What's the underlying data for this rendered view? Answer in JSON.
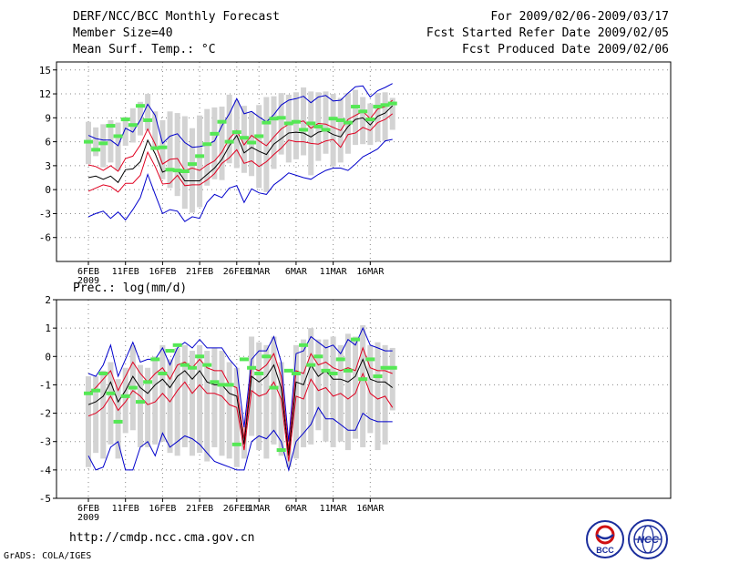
{
  "header": {
    "title": "DERF/NCC/BCC Monthly Forecast",
    "member_size": "Member Size=40",
    "variable": "Mean Surf. Temp.: °C",
    "for_range": "For 2009/02/06-2009/03/17",
    "fcst_started": "Fcst Started Refer Date 2009/02/05",
    "fcst_produced": "Fcst Produced Date 2009/02/06"
  },
  "footer": {
    "url": "http://cmdp.ncc.cma.gov.cn",
    "credit": "GrADS: COLA/IGES",
    "logo_left_text": "BCC",
    "logo_right_text": "NCC"
  },
  "colors": {
    "ensemble_box": "#d3d3d3",
    "median": "#55e855",
    "mean": "#000000",
    "inner_band": "#e00020",
    "outer_band": "#0000cc",
    "grid": "#888888"
  },
  "chart_data": [
    {
      "type": "line",
      "title": "Mean Surf. Temp.: °C",
      "xlabel": "",
      "ylabel": "",
      "ylim": [
        -9,
        16
      ],
      "yticks": [
        15,
        12,
        9,
        6,
        3,
        0,
        -3,
        -6
      ],
      "xtick_labels": [
        {
          "day": 0,
          "label": "6FEB",
          "sub": "2009"
        },
        {
          "day": 5,
          "label": "11FEB"
        },
        {
          "day": 10,
          "label": "16FEB"
        },
        {
          "day": 15,
          "label": "21FEB"
        },
        {
          "day": 20,
          "label": "26FEB"
        },
        {
          "day": 23,
          "label": "1MAR"
        },
        {
          "day": 28,
          "label": "6MAR"
        },
        {
          "day": 33,
          "label": "11MAR"
        },
        {
          "day": 38,
          "label": "16MAR"
        }
      ],
      "series": [
        {
          "name": "max",
          "values": [
            -3.4,
            -3,
            -2.7,
            -3.6,
            -2.8,
            -3.8,
            -2.5,
            -1,
            1.9,
            -0.6,
            -3,
            -2.5,
            -2.7,
            -4,
            -3.4,
            -3.6,
            -1.6,
            -0.6,
            -1,
            0.2,
            0.5,
            -1.6,
            0.1,
            -0.4,
            -0.6,
            0.6,
            1.3,
            2.1,
            1.8,
            1.5,
            1.3,
            1.9,
            2.4,
            2.7,
            2.7,
            2.4,
            3.2,
            4.1,
            4.6,
            5.1,
            6.1,
            6.3
          ]
        },
        {
          "name": "upper_inner",
          "values": [
            -0.2,
            0.2,
            0.6,
            0.4,
            -0.3,
            0.8,
            0.8,
            1.8,
            4.7,
            2.9,
            0.7,
            0.8,
            1.8,
            0.5,
            0.6,
            0.6,
            1.2,
            2,
            3.3,
            4,
            5,
            3.3,
            3.6,
            2.9,
            3.5,
            4.4,
            5.2,
            6.2,
            6,
            6,
            5.8,
            5.7,
            6.1,
            6.3,
            5.3,
            6.9,
            7.1,
            7.8,
            7.4,
            8.4,
            8.8,
            9.5
          ]
        },
        {
          "name": "mean",
          "values": [
            1.5,
            1.7,
            1.3,
            1.7,
            0.9,
            2.5,
            2.6,
            3.5,
            6.2,
            4.5,
            2.2,
            2.6,
            2.5,
            1.1,
            1.1,
            1.1,
            1.9,
            2.7,
            3.8,
            5.5,
            6.8,
            4.6,
            5.3,
            4.8,
            4.4,
            5.7,
            6.4,
            7.1,
            7.2,
            7.1,
            6.6,
            7.2,
            7.4,
            6.9,
            6.6,
            7.9,
            8.8,
            9,
            8.1,
            9.2,
            9.6,
            10.5
          ]
        },
        {
          "name": "lower_inner",
          "values": [
            3.1,
            2.9,
            2.4,
            3,
            2.3,
            3.9,
            4.2,
            5.6,
            7.6,
            5.7,
            3.2,
            3.8,
            3.9,
            2.4,
            2.7,
            2.4,
            3.1,
            3.6,
            4.7,
            6.4,
            7.4,
            5.6,
            6.8,
            6.1,
            5.5,
            6.6,
            7.6,
            8.2,
            8.4,
            8.6,
            7.7,
            8.3,
            8.2,
            7.8,
            7.4,
            8.8,
            9.3,
            9.8,
            8.9,
            10.1,
            10.4,
            11.2
          ]
        },
        {
          "name": "min",
          "values": [
            6.8,
            6.4,
            6.2,
            6.2,
            5.5,
            7.7,
            7.2,
            8.7,
            10.7,
            9.3,
            5.8,
            6.7,
            7,
            5.9,
            5.3,
            5.4,
            5.6,
            6.1,
            8,
            9.5,
            11.4,
            9.5,
            9.8,
            9.1,
            8.5,
            9.4,
            10.6,
            11.2,
            11.4,
            11.7,
            10.9,
            11.6,
            11.8,
            11.1,
            11.2,
            12.1,
            12.9,
            13,
            11.6,
            12.4,
            12.8,
            13.3
          ]
        },
        {
          "name": "median",
          "values": [
            6,
            5,
            5.8,
            8,
            6.7,
            8.8,
            8.1,
            10.5,
            8.7,
            5.2,
            5.3,
            2.5,
            2.4,
            2.3,
            3.2,
            4.2,
            5.7,
            7,
            8.5,
            6,
            7.2,
            6.5,
            5.9,
            6.7,
            8.4,
            8.9,
            9,
            8.3,
            8.5,
            7.5,
            8.3,
            7.9,
            7.5,
            8.9,
            8.7,
            8.4,
            10.4,
            9.8,
            8.8,
            10.4,
            10.6,
            10.8
          ]
        },
        {
          "name": "box_low",
          "values": [
            3.2,
            4.2,
            2.8,
            3.4,
            2.4,
            5.5,
            5.9,
            6.8,
            7.4,
            5.3,
            1.3,
            0.2,
            -0.8,
            -2.4,
            -2.9,
            -2.2,
            0.5,
            1.3,
            1.2,
            3.3,
            2.7,
            2.1,
            1.7,
            0.2,
            -0.3,
            2.6,
            4.4,
            3.4,
            3.8,
            4.3,
            1.8,
            3.6,
            4.5,
            2.9,
            3.4,
            4.5,
            5.6,
            5.7,
            5.6,
            6,
            6.1,
            7.5
          ]
        },
        {
          "name": "box_high",
          "values": [
            8.5,
            7.8,
            8.2,
            8.7,
            8.4,
            9.1,
            10.2,
            11,
            12,
            9.8,
            8.7,
            9.8,
            9.6,
            9.2,
            7.7,
            9.3,
            10.1,
            10.3,
            10.4,
            11.9,
            11.2,
            10.5,
            9.7,
            10.6,
            11.6,
            11.7,
            12.1,
            11.9,
            12.2,
            12.8,
            12.3,
            12.2,
            12.3,
            12,
            11.5,
            12.1,
            12.5,
            11.6,
            10.8,
            12.1,
            12.2,
            11.5
          ]
        }
      ]
    },
    {
      "type": "line",
      "title": "Prec.: log(mm/d)",
      "xlabel": "",
      "ylabel": "",
      "ylim": [
        -5,
        2
      ],
      "yticks": [
        2,
        1,
        0,
        -1,
        -2,
        -3,
        -4,
        -5
      ],
      "xtick_labels": [
        {
          "day": 0,
          "label": "6FEB",
          "sub": "2009"
        },
        {
          "day": 5,
          "label": "11FEB"
        },
        {
          "day": 10,
          "label": "16FEB"
        },
        {
          "day": 15,
          "label": "21FEB"
        },
        {
          "day": 20,
          "label": "26FEB"
        },
        {
          "day": 23,
          "label": "1MAR"
        },
        {
          "day": 28,
          "label": "6MAR"
        },
        {
          "day": 33,
          "label": "11MAR"
        },
        {
          "day": 38,
          "label": "16MAR"
        }
      ],
      "series": [
        {
          "name": "max",
          "values": [
            -0.6,
            -0.7,
            -0.3,
            0.4,
            -0.7,
            -0.1,
            0.5,
            -0.2,
            -0.1,
            -0.1,
            0.3,
            -0.3,
            0.3,
            0.5,
            0.3,
            0.6,
            0.3,
            0.3,
            0.3,
            -0.1,
            -0.4,
            -2.5,
            -0.1,
            0.2,
            0.2,
            0.7,
            -0.2,
            -3,
            0.1,
            0.2,
            0.7,
            0.5,
            0.3,
            0.4,
            0.1,
            0.6,
            0.4,
            1.0,
            0.4,
            0.3,
            0.2,
            0.2
          ]
        },
        {
          "name": "upper_inner",
          "values": [
            -1.3,
            -1.1,
            -0.8,
            -0.5,
            -1.2,
            -0.7,
            -0.2,
            -0.6,
            -0.9,
            -0.6,
            -0.4,
            -0.8,
            -0.3,
            -0.2,
            -0.4,
            -0.1,
            -0.4,
            -0.5,
            -0.5,
            -1,
            -1.1,
            -2.9,
            -0.4,
            -0.5,
            -0.3,
            0.1,
            -0.7,
            -3.3,
            -0.5,
            -0.6,
            0.1,
            -0.3,
            -0.2,
            -0.4,
            -0.5,
            -0.4,
            -0.5,
            0.3,
            -0.4,
            -0.5,
            -0.5,
            -0.6
          ]
        },
        {
          "name": "mean",
          "values": [
            -1.7,
            -1.6,
            -1.4,
            -0.9,
            -1.6,
            -1.2,
            -0.7,
            -1.1,
            -1.3,
            -1,
            -0.8,
            -1.1,
            -0.7,
            -0.5,
            -0.8,
            -0.5,
            -0.9,
            -1,
            -1,
            -1.3,
            -1.4,
            -3.1,
            -0.7,
            -0.9,
            -0.7,
            -0.3,
            -1.1,
            -3.5,
            -0.9,
            -1,
            -0.3,
            -0.7,
            -0.5,
            -0.8,
            -0.8,
            -0.9,
            -0.7,
            -0.1,
            -0.8,
            -0.9,
            -0.9,
            -1.1
          ]
        },
        {
          "name": "lower_inner",
          "values": [
            -2.1,
            -2,
            -1.8,
            -1.4,
            -1.9,
            -1.6,
            -1.2,
            -1.4,
            -1.7,
            -1.6,
            -1.3,
            -1.6,
            -1.2,
            -0.9,
            -1.3,
            -1,
            -1.3,
            -1.3,
            -1.4,
            -1.7,
            -1.8,
            -3.3,
            -1.2,
            -1.4,
            -1.3,
            -0.9,
            -1.5,
            -3.7,
            -1.4,
            -1.5,
            -0.8,
            -1.2,
            -1.1,
            -1.4,
            -1.3,
            -1.5,
            -1.3,
            -0.6,
            -1.3,
            -1.5,
            -1.4,
            -1.8
          ]
        },
        {
          "name": "min",
          "values": [
            -3.5,
            -4,
            -3.9,
            -3.2,
            -3,
            -4,
            -4,
            -3.2,
            -3,
            -3.5,
            -2.7,
            -3.2,
            -3,
            -2.8,
            -2.9,
            -3.1,
            -3.4,
            -3.7,
            -3.8,
            -3.9,
            -4,
            -4,
            -3,
            -2.8,
            -2.9,
            -2.6,
            -3,
            -4,
            -3,
            -2.7,
            -2.4,
            -1.8,
            -2.2,
            -2.2,
            -2.4,
            -2.6,
            -2.6,
            -2,
            -2.2,
            -2.3,
            -2.3,
            -2.3
          ]
        },
        {
          "name": "median",
          "values": [
            -1.3,
            -1.2,
            -0.6,
            -1.3,
            -2.3,
            -1.4,
            -1.1,
            -1.6,
            -0.9,
            -0.1,
            -0.6,
            0.2,
            0.4,
            -0.3,
            -0.4,
            0,
            -0.3,
            -0.9,
            -1,
            -1,
            -3.1,
            -0.1,
            -0.4,
            -0.6,
            0,
            -1.1,
            -3.3,
            -0.5,
            -0.6,
            0.4,
            -0.3,
            0,
            -0.5,
            -0.6,
            -0.1,
            -0.5,
            0.6,
            -0.8,
            -0.1,
            -0.7,
            -0.4,
            -0.4
          ]
        },
        {
          "name": "box_low",
          "values": [
            -3.9,
            -3.4,
            -3.6,
            -3.1,
            -3.6,
            -2.7,
            -2.6,
            -3.2,
            -3.2,
            -3.1,
            -3,
            -3.4,
            -3.5,
            -3.2,
            -3.5,
            -3.4,
            -3.7,
            -3.2,
            -3.5,
            -3.6,
            -3.9,
            -3.6,
            -2.8,
            -3.3,
            -3.6,
            -3.1,
            -3.5,
            -3.9,
            -3.6,
            -3.2,
            -3.1,
            -2.6,
            -3,
            -3.2,
            -3,
            -3.3,
            -2.9,
            -3.2,
            -2.7,
            -3.3,
            -3.1,
            -1.9
          ]
        },
        {
          "name": "box_high",
          "values": [
            -0.7,
            -0.7,
            -0.5,
            -0.2,
            -0.8,
            -0.4,
            0.4,
            -0.3,
            -0.4,
            0,
            0.4,
            -0.1,
            0.3,
            0.4,
            0.2,
            0.4,
            0.2,
            0.3,
            0.2,
            -0.2,
            -0.4,
            -2.5,
            0.7,
            0.5,
            0.4,
            0.7,
            -0.2,
            -2.9,
            0.4,
            0.6,
            1,
            0.6,
            0.6,
            0.7,
            0.4,
            0.8,
            0.7,
            1.1,
            0.4,
            0.5,
            0.4,
            0.3
          ]
        }
      ]
    }
  ]
}
